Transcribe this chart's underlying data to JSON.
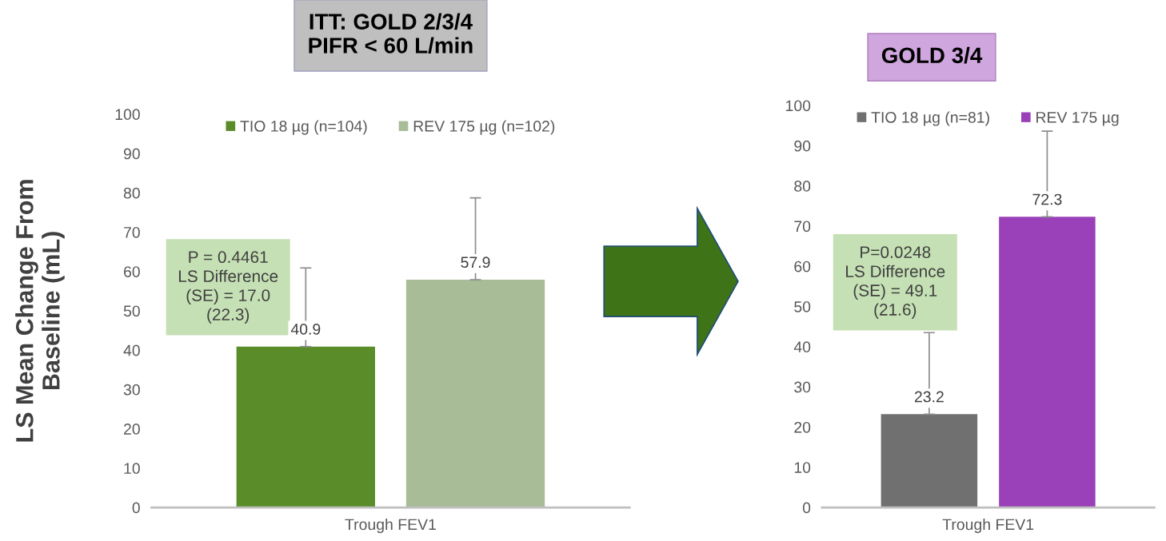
{
  "chart_data": [
    {
      "type": "bar",
      "title": "ITT: GOLD 2/3/4\nPIFR < 60 L/min",
      "ylabel": "LS Mean Change From\nBaseline (mL)",
      "categories": [
        "Trough FEV1"
      ],
      "series": [
        {
          "name": "TIO 18 µg (n=104)",
          "color": "#5b8c2a",
          "values": [
            40.9
          ],
          "errors": [
            20.0
          ]
        },
        {
          "name": "REV 175 µg (n=102)",
          "color": "#a8bc98",
          "values": [
            57.9
          ],
          "errors": [
            20.8
          ]
        }
      ],
      "ylim": [
        0,
        100
      ],
      "yticks": [
        0,
        10,
        20,
        30,
        40,
        50,
        60,
        70,
        80,
        90,
        100
      ],
      "data_labels": true,
      "legend": "top",
      "grid": false,
      "annotations": [
        "P = 0.4461\nLS Difference\n(SE) = 17.0\n(22.3)"
      ]
    },
    {
      "type": "bar",
      "title": "GOLD 3/4",
      "categories": [
        "Trough FEV1"
      ],
      "series": [
        {
          "name": "TIO 18 µg (n=81)",
          "color": "#707070",
          "values": [
            23.2
          ],
          "errors": [
            20.3
          ]
        },
        {
          "name": "REV 175 µg",
          "color": "#9a40b8",
          "values": [
            72.3
          ],
          "errors": [
            21.3
          ]
        }
      ],
      "ylim": [
        0,
        100
      ],
      "yticks": [
        0,
        10,
        20,
        30,
        40,
        50,
        60,
        70,
        80,
        90,
        100
      ],
      "data_labels": true,
      "legend": "top",
      "grid": false,
      "annotations": [
        "P=0.0248\nLS Difference\n(SE) = 49.1\n(21.6)"
      ]
    }
  ]
}
